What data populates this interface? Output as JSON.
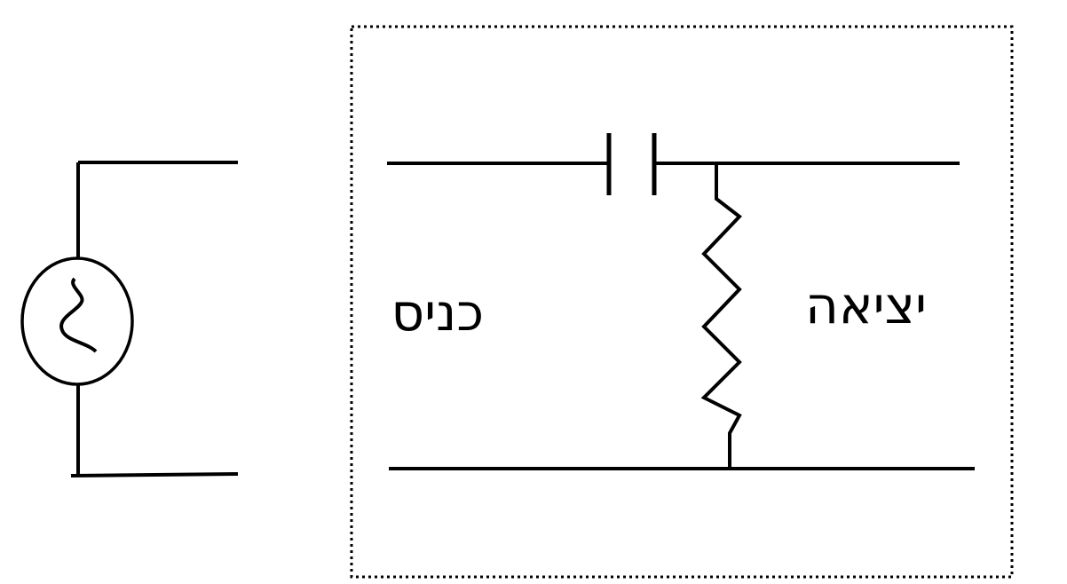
{
  "labels": {
    "input": "כניס",
    "output": "יציאה"
  },
  "components": {
    "source_icon": "ac-source-icon",
    "capacitor_icon": "capacitor-icon",
    "resistor_icon": "resistor-icon"
  },
  "colors": {
    "line": "#000000",
    "background": "#ffffff"
  }
}
